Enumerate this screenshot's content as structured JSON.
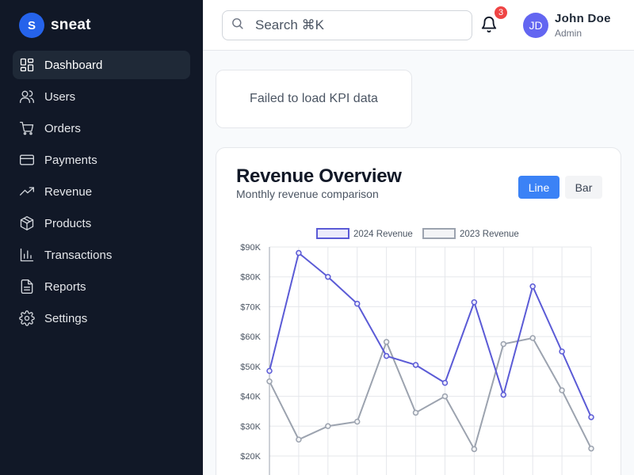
{
  "brand": {
    "logo_letter": "S",
    "name": "sneat"
  },
  "nav": [
    {
      "label": "Dashboard",
      "icon": "dashboard-icon",
      "active": true
    },
    {
      "label": "Users",
      "icon": "users-icon"
    },
    {
      "label": "Orders",
      "icon": "cart-icon"
    },
    {
      "label": "Payments",
      "icon": "credit-card-icon"
    },
    {
      "label": "Revenue",
      "icon": "trending-up-icon"
    },
    {
      "label": "Products",
      "icon": "box-icon"
    },
    {
      "label": "Transactions",
      "icon": "bar-chart-icon"
    },
    {
      "label": "Reports",
      "icon": "file-text-icon"
    },
    {
      "label": "Settings",
      "icon": "gear-icon"
    }
  ],
  "topbar": {
    "search_placeholder": "Search ⌘K",
    "notification_count": "3",
    "user": {
      "initials": "JD",
      "name": "John Doe",
      "role": "Admin"
    }
  },
  "kpi": {
    "error_text": "Failed to load KPI data"
  },
  "chart_card": {
    "title": "Revenue Overview",
    "subtitle": "Monthly revenue comparison",
    "toggle": {
      "line_label": "Line",
      "bar_label": "Bar",
      "selected": "Line"
    }
  },
  "colors": {
    "accent": "#3b82f6",
    "series_2024": "#5b5bd6",
    "series_2023": "#9ca3af",
    "sidebar_bg": "#111827"
  },
  "chart_data": {
    "type": "line",
    "legend_position": "top-center",
    "grid": true,
    "y_ticks": [
      "$20K",
      "$30K",
      "$40K",
      "$50K",
      "$60K",
      "$70K",
      "$80K",
      "$90K"
    ],
    "ylim": [
      20000,
      90000
    ],
    "series": [
      {
        "name": "2024 Revenue",
        "values": [
          48500,
          88000,
          80000,
          71000,
          53500,
          50500,
          44500,
          71500,
          40500,
          76800,
          55000,
          33000
        ]
      },
      {
        "name": "2023 Revenue",
        "values": [
          45000,
          25500,
          30000,
          31500,
          58200,
          34500,
          40000,
          22300,
          57500,
          59500,
          42000,
          22500
        ]
      }
    ]
  }
}
